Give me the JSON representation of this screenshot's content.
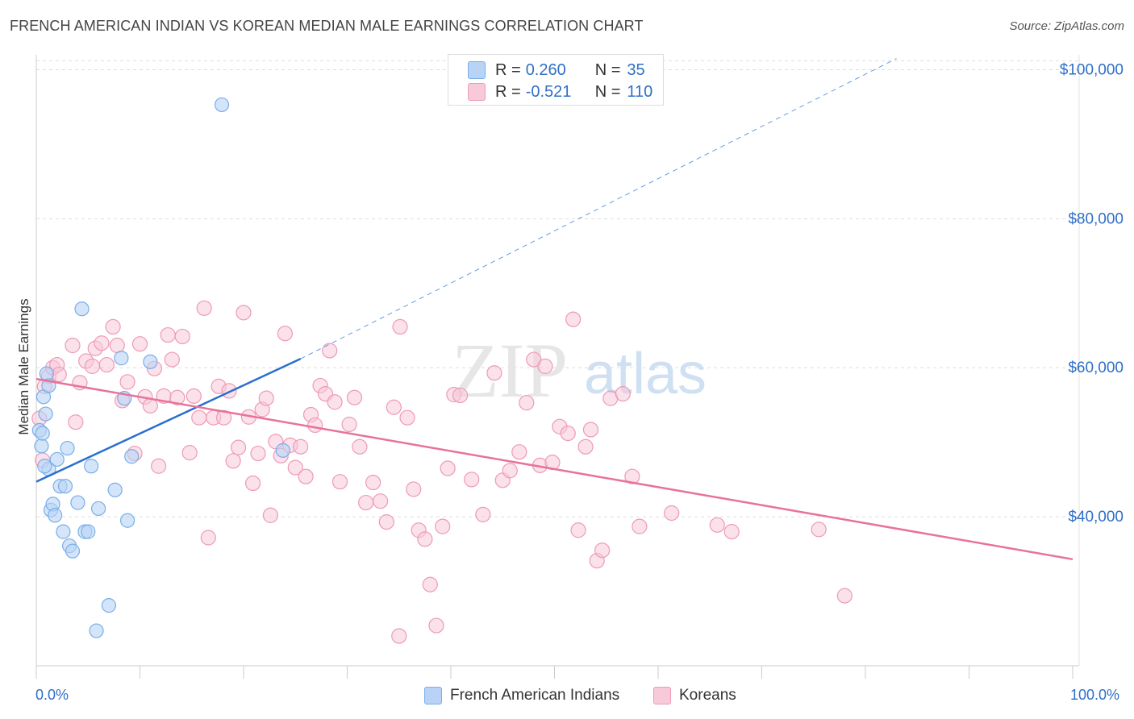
{
  "title": "FRENCH AMERICAN INDIAN VS KOREAN MEDIAN MALE EARNINGS CORRELATION CHART",
  "source": "Source: ZipAtlas.com",
  "watermark": {
    "zip": "ZIP",
    "atlas": "atlas"
  },
  "legend_top": {
    "rows": [
      {
        "r_label": "R =",
        "r_value": "0.260",
        "n_label": "N =",
        "n_value": "35"
      },
      {
        "r_label": "R =",
        "r_value": "-0.521",
        "n_label": "N =",
        "n_value": "110"
      }
    ]
  },
  "legend_bottom": {
    "items": [
      "French American Indians",
      "Koreans"
    ]
  },
  "x_axis": {
    "min_label": "0.0%",
    "max_label": "100.0%"
  },
  "colors": {
    "blue": "#7aaee8",
    "blue_fill": "#b8d3f5",
    "blue_line": "#2a6fd0",
    "pink": "#ee9ab5",
    "pink_fill": "#f8c9d8",
    "pink_line": "#e8729a",
    "tick_label": "#2f6fc7",
    "grid": "#dddddd"
  },
  "chart_data": {
    "type": "scatter",
    "title": "FRENCH AMERICAN INDIAN VS KOREAN MEDIAN MALE EARNINGS CORRELATION CHART",
    "xlabel": "",
    "ylabel": "Median Male Earnings",
    "xlim": [
      0,
      100
    ],
    "ylim": [
      20000,
      102000
    ],
    "y_ticks": [
      40000,
      60000,
      80000,
      100000
    ],
    "y_tick_labels": [
      "$40,000",
      "$60,000",
      "$80,000",
      "$100,000"
    ],
    "grid": true,
    "legend": "bottom-center",
    "series": [
      {
        "name": "French American Indians",
        "color": "#7aaee8",
        "r": 0.26,
        "n": 35,
        "trend": {
          "x0": 0,
          "y0": 44700,
          "x1": 25.5,
          "y1": 61200,
          "dashed_to_x": 83,
          "dashed_to_y": 101500
        },
        "points": [
          [
            0.3,
            51600
          ],
          [
            0.5,
            49500
          ],
          [
            0.6,
            51200
          ],
          [
            0.7,
            56100
          ],
          [
            0.9,
            53800
          ],
          [
            1.0,
            59200
          ],
          [
            1.2,
            57600
          ],
          [
            1.2,
            46400
          ],
          [
            1.4,
            40900
          ],
          [
            1.6,
            41700
          ],
          [
            1.8,
            40200
          ],
          [
            2.0,
            47700
          ],
          [
            2.3,
            44100
          ],
          [
            2.6,
            38000
          ],
          [
            2.8,
            44100
          ],
          [
            3.0,
            49200
          ],
          [
            3.2,
            36100
          ],
          [
            3.5,
            35400
          ],
          [
            4.0,
            41900
          ],
          [
            4.4,
            67900
          ],
          [
            4.7,
            38000
          ],
          [
            5.0,
            38000
          ],
          [
            5.3,
            46800
          ],
          [
            6.0,
            41100
          ],
          [
            7.0,
            28100
          ],
          [
            7.6,
            43600
          ],
          [
            8.2,
            61300
          ],
          [
            8.5,
            55900
          ],
          [
            8.8,
            39500
          ],
          [
            9.2,
            48100
          ],
          [
            5.8,
            24700
          ],
          [
            17.9,
            95300
          ],
          [
            11.0,
            60800
          ],
          [
            23.8,
            48900
          ],
          [
            0.8,
            46800
          ]
        ]
      },
      {
        "name": "Koreans",
        "color": "#ee9ab5",
        "r": -0.521,
        "n": 110,
        "trend": {
          "x0": 0,
          "y0": 58500,
          "x1": 100,
          "y1": 34300
        },
        "points": [
          [
            0.3,
            53200
          ],
          [
            0.6,
            47600
          ],
          [
            0.8,
            57500
          ],
          [
            1.2,
            58900
          ],
          [
            1.6,
            60000
          ],
          [
            2.0,
            60400
          ],
          [
            2.2,
            59100
          ],
          [
            3.5,
            63000
          ],
          [
            3.8,
            52700
          ],
          [
            4.2,
            58000
          ],
          [
            4.8,
            60900
          ],
          [
            5.4,
            60200
          ],
          [
            5.7,
            62600
          ],
          [
            6.3,
            63300
          ],
          [
            6.8,
            60400
          ],
          [
            7.4,
            65500
          ],
          [
            7.8,
            63000
          ],
          [
            8.3,
            55600
          ],
          [
            8.8,
            58100
          ],
          [
            9.5,
            48500
          ],
          [
            10.0,
            63200
          ],
          [
            10.5,
            56100
          ],
          [
            11.0,
            54900
          ],
          [
            11.4,
            59900
          ],
          [
            11.8,
            46800
          ],
          [
            12.3,
            56200
          ],
          [
            12.7,
            64400
          ],
          [
            13.1,
            61100
          ],
          [
            13.6,
            56000
          ],
          [
            14.1,
            64200
          ],
          [
            14.8,
            48600
          ],
          [
            15.2,
            56200
          ],
          [
            15.7,
            53300
          ],
          [
            16.2,
            68000
          ],
          [
            16.6,
            37200
          ],
          [
            17.1,
            53300
          ],
          [
            17.6,
            57500
          ],
          [
            18.1,
            53300
          ],
          [
            18.6,
            56900
          ],
          [
            19.0,
            47500
          ],
          [
            19.5,
            49300
          ],
          [
            20.0,
            67400
          ],
          [
            20.5,
            53400
          ],
          [
            20.9,
            44500
          ],
          [
            21.4,
            48500
          ],
          [
            21.8,
            54400
          ],
          [
            22.2,
            55900
          ],
          [
            22.6,
            40200
          ],
          [
            23.1,
            50100
          ],
          [
            23.6,
            48200
          ],
          [
            24.0,
            64600
          ],
          [
            24.5,
            49600
          ],
          [
            25.0,
            46600
          ],
          [
            25.5,
            49400
          ],
          [
            26.0,
            45400
          ],
          [
            26.5,
            53700
          ],
          [
            26.9,
            52300
          ],
          [
            27.4,
            57600
          ],
          [
            27.9,
            56500
          ],
          [
            28.3,
            62300
          ],
          [
            28.8,
            55400
          ],
          [
            29.3,
            44700
          ],
          [
            30.2,
            52400
          ],
          [
            30.7,
            56000
          ],
          [
            31.2,
            49400
          ],
          [
            31.8,
            41900
          ],
          [
            32.5,
            44600
          ],
          [
            33.2,
            42100
          ],
          [
            33.8,
            39300
          ],
          [
            34.5,
            54700
          ],
          [
            35.1,
            65500
          ],
          [
            35.8,
            53300
          ],
          [
            36.4,
            43700
          ],
          [
            36.9,
            38200
          ],
          [
            37.5,
            37000
          ],
          [
            38.0,
            30900
          ],
          [
            38.6,
            25400
          ],
          [
            39.2,
            38700
          ],
          [
            39.7,
            46500
          ],
          [
            40.3,
            56400
          ],
          [
            40.9,
            56300
          ],
          [
            42.0,
            45000
          ],
          [
            43.1,
            40300
          ],
          [
            44.2,
            59300
          ],
          [
            45.0,
            44900
          ],
          [
            45.7,
            46200
          ],
          [
            46.6,
            48700
          ],
          [
            47.3,
            55300
          ],
          [
            48.0,
            61100
          ],
          [
            48.6,
            46900
          ],
          [
            49.1,
            60200
          ],
          [
            49.8,
            47300
          ],
          [
            50.5,
            52100
          ],
          [
            51.3,
            51200
          ],
          [
            51.8,
            66500
          ],
          [
            52.3,
            38200
          ],
          [
            53.0,
            49400
          ],
          [
            53.5,
            51700
          ],
          [
            54.1,
            34100
          ],
          [
            54.6,
            35500
          ],
          [
            55.4,
            55900
          ],
          [
            56.6,
            56500
          ],
          [
            57.5,
            45400
          ],
          [
            58.2,
            38700
          ],
          [
            61.3,
            40500
          ],
          [
            65.7,
            38900
          ],
          [
            67.1,
            38000
          ],
          [
            75.5,
            38300
          ],
          [
            78.0,
            29400
          ],
          [
            35.0,
            24000
          ]
        ]
      }
    ]
  }
}
